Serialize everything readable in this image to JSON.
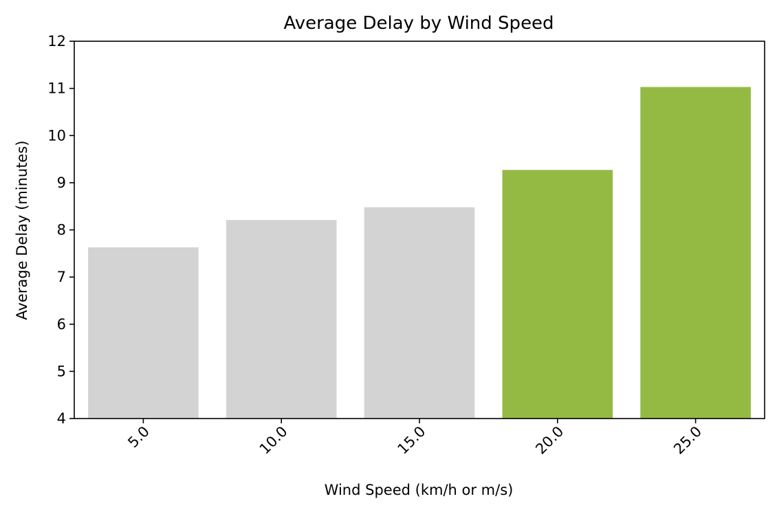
{
  "chart_data": {
    "type": "bar",
    "title": "Average Delay by Wind Speed",
    "xlabel": "Wind Speed (km/h or m/s)",
    "ylabel": "Average Delay (minutes)",
    "categories": [
      "5.0",
      "10.0",
      "15.0",
      "20.0",
      "25.0"
    ],
    "values": [
      7.63,
      8.21,
      8.48,
      9.27,
      11.03
    ],
    "ylim": [
      4,
      12
    ],
    "yticks": [
      4,
      5,
      6,
      7,
      8,
      9,
      10,
      11,
      12
    ],
    "bar_colors": [
      "#d3d3d3",
      "#d3d3d3",
      "#d3d3d3",
      "#94ba44",
      "#94ba44"
    ],
    "grid": false,
    "legend": "none"
  }
}
